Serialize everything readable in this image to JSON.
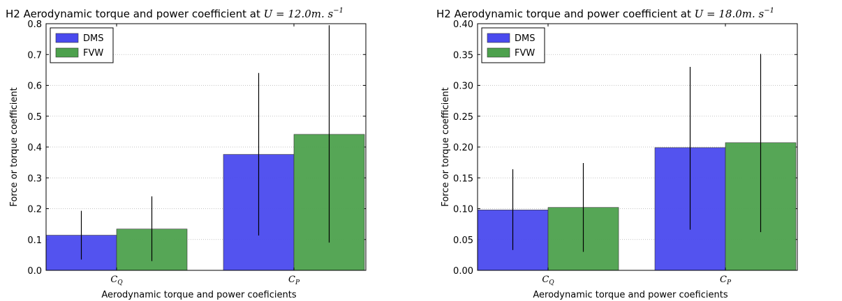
{
  "chart_data": [
    {
      "type": "bar",
      "title_prefix": "H2 Aerodynamic torque and power coefficient at ",
      "title_math": "U = 12.0m. s",
      "title_math_sup": "−1",
      "xlabel": "Aerodynamic torque and power coeficients",
      "ylabel": "Force or torque coefficient",
      "categories": [
        "C_Q",
        "C_P"
      ],
      "category_labels": [
        {
          "base": "C",
          "sub": "Q"
        },
        {
          "base": "C",
          "sub": "P"
        }
      ],
      "ylim": [
        0,
        0.8
      ],
      "yticks": [
        "0.0",
        "0.1",
        "0.2",
        "0.3",
        "0.4",
        "0.5",
        "0.6",
        "0.7",
        "0.8"
      ],
      "grid": true,
      "legend": "top-left",
      "series": [
        {
          "name": "DMS",
          "color": "#4a4aee",
          "values": [
            0.114,
            0.376
          ],
          "err_low": [
            0.035,
            0.113
          ],
          "err_high": [
            0.193,
            0.64
          ]
        },
        {
          "name": "FVW",
          "color": "#4da14d",
          "values": [
            0.134,
            0.441
          ],
          "err_low": [
            0.03,
            0.09
          ],
          "err_high": [
            0.24,
            0.795
          ]
        }
      ]
    },
    {
      "type": "bar",
      "title_prefix": "H2 Aerodynamic torque and power coefficient at ",
      "title_math": "U = 18.0m. s",
      "title_math_sup": "−1",
      "xlabel": "Aerodynamic torque and power coeficients",
      "ylabel": "Force or torque coefficient",
      "categories": [
        "C_Q",
        "C_P"
      ],
      "category_labels": [
        {
          "base": "C",
          "sub": "Q"
        },
        {
          "base": "C",
          "sub": "P"
        }
      ],
      "ylim": [
        0,
        0.4
      ],
      "yticks": [
        "0.00",
        "0.05",
        "0.10",
        "0.15",
        "0.20",
        "0.25",
        "0.30",
        "0.35",
        "0.40"
      ],
      "grid": true,
      "legend": "top-left",
      "series": [
        {
          "name": "DMS",
          "color": "#4a4aee",
          "values": [
            0.098,
            0.199
          ],
          "err_low": [
            0.033,
            0.066
          ],
          "err_high": [
            0.164,
            0.33
          ]
        },
        {
          "name": "FVW",
          "color": "#4da14d",
          "values": [
            0.102,
            0.207
          ],
          "err_low": [
            0.03,
            0.062
          ],
          "err_high": [
            0.174,
            0.351
          ]
        }
      ]
    }
  ]
}
